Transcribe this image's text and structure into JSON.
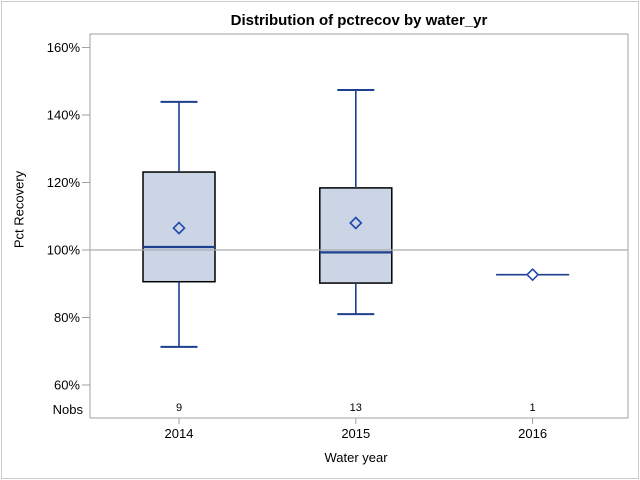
{
  "chart_data": {
    "type": "boxplot",
    "title": "Distribution of pctrecov by water_yr",
    "xlabel": "Water year",
    "ylabel": "Pct Recovery",
    "nobs_row_label": "Nobs",
    "y_axis": {
      "min": 60,
      "max": 160,
      "tick_step": 20,
      "ticks": [
        {
          "v": 160,
          "label": "160%"
        },
        {
          "v": 140,
          "label": "140%"
        },
        {
          "v": 120,
          "label": "120%"
        },
        {
          "v": 100,
          "label": "100%"
        },
        {
          "v": 80,
          "label": "80%"
        },
        {
          "v": 60,
          "label": "60%"
        }
      ]
    },
    "reference_line": 100,
    "categories": [
      "2014",
      "2015",
      "2016"
    ],
    "groups": [
      {
        "category": "2014",
        "nobs": "9",
        "whisker_low": 71.3,
        "q1": 90.6,
        "median": 100.9,
        "q3": 123.1,
        "whisker_high": 143.9,
        "mean": 106.5
      },
      {
        "category": "2015",
        "nobs": "13",
        "whisker_low": 81.0,
        "q1": 90.2,
        "median": 99.3,
        "q3": 118.4,
        "whisker_high": 147.4,
        "mean": 108.0
      },
      {
        "category": "2016",
        "nobs": "1",
        "whisker_low": 92.7,
        "q1": null,
        "median": null,
        "q3": null,
        "whisker_high": 92.7,
        "mean": 92.7
      }
    ],
    "colors": {
      "box_fill": "#cbd5e5",
      "box_border": "#000000",
      "line": "#1c3f8e",
      "mean_marker": "#2247ad",
      "axis_frame": "#9ca1a6",
      "reference_line": "#a9adb0",
      "outer_border": "#c9cdd1",
      "text": "#000000"
    }
  }
}
